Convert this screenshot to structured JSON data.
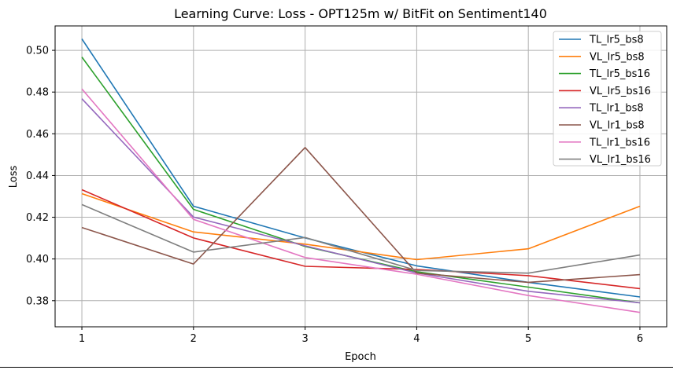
{
  "chart_data": {
    "type": "line",
    "title": "Learning Curve: Loss - OPT125m w/ BitFit on Sentiment140",
    "xlabel": "Epoch",
    "ylabel": "Loss",
    "x": [
      1,
      2,
      3,
      4,
      5,
      6
    ],
    "xticks": [
      "1",
      "2",
      "3",
      "4",
      "5",
      "6"
    ],
    "yticks": [
      "0.38",
      "0.40",
      "0.42",
      "0.44",
      "0.46",
      "0.48",
      "0.50"
    ],
    "xlim": [
      0.76,
      6.24
    ],
    "ylim": [
      0.3675,
      0.5117
    ],
    "grid": true,
    "legend_position": "top-right",
    "series": [
      {
        "name": "TL_lr5_bs8",
        "color": "#1f77b4",
        "values": [
          0.5055,
          0.4253,
          0.4101,
          0.3967,
          0.3888,
          0.3818
        ]
      },
      {
        "name": "VL_lr5_bs8",
        "color": "#ff7f0e",
        "values": [
          0.4313,
          0.413,
          0.4071,
          0.3997,
          0.4049,
          0.4253
        ]
      },
      {
        "name": "TL_lr5_bs16",
        "color": "#2ca02c",
        "values": [
          0.4968,
          0.4238,
          0.406,
          0.3939,
          0.3865,
          0.379
        ]
      },
      {
        "name": "VL_lr5_bs16",
        "color": "#d62728",
        "values": [
          0.4332,
          0.4101,
          0.3965,
          0.395,
          0.392,
          0.3858
        ]
      },
      {
        "name": "TL_lr1_bs8",
        "color": "#9467bd",
        "values": [
          0.4768,
          0.4201,
          0.4063,
          0.3933,
          0.3845,
          0.379
        ]
      },
      {
        "name": "VL_lr1_bs8",
        "color": "#8c564b",
        "values": [
          0.4151,
          0.3976,
          0.4534,
          0.3932,
          0.3888,
          0.3925
        ]
      },
      {
        "name": "TL_lr1_bs16",
        "color": "#e377c2",
        "values": [
          0.4815,
          0.419,
          0.4007,
          0.3927,
          0.3825,
          0.3744
        ]
      },
      {
        "name": "VL_lr1_bs16",
        "color": "#7f7f7f",
        "values": [
          0.4261,
          0.4033,
          0.4103,
          0.3945,
          0.3932,
          0.4019
        ]
      }
    ]
  }
}
